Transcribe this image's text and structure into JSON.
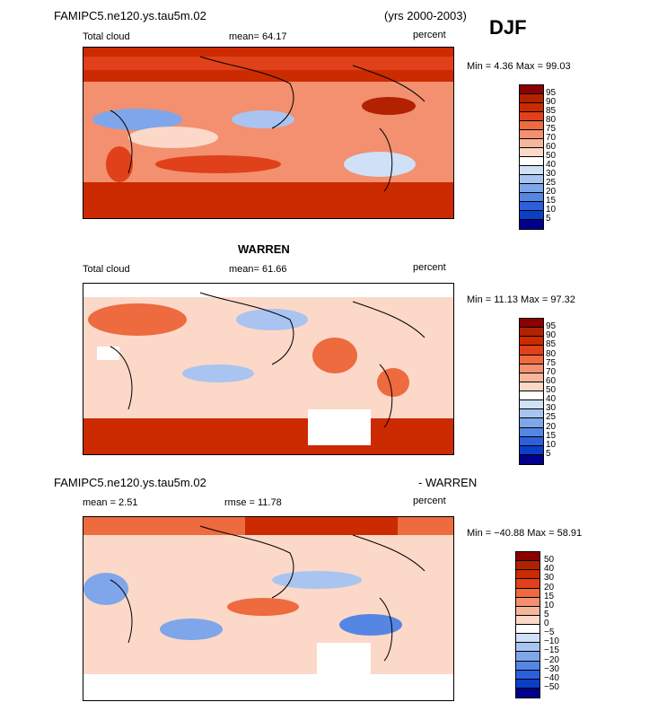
{
  "header": {
    "model": "FAMIPC5.ne120.ys.tau5m.02",
    "years": "(yrs 2000-2003)",
    "season": "DJF"
  },
  "panels": [
    {
      "title_left": "Total cloud",
      "stat": "mean=  64.17",
      "units": "percent",
      "minmax": "Min =   4.36 Max =  99.03",
      "levels": [
        "95",
        "90",
        "85",
        "80",
        "75",
        "70",
        "60",
        "50",
        "40",
        "30",
        "25",
        "20",
        "15",
        "10",
        "5"
      ]
    },
    {
      "center_title": "WARREN",
      "title_left": "Total cloud",
      "stat": "mean=  61.66",
      "units": "percent",
      "minmax": "Min =  11.13 Max =  97.32",
      "levels": [
        "95",
        "90",
        "85",
        "80",
        "75",
        "70",
        "60",
        "50",
        "40",
        "30",
        "25",
        "20",
        "15",
        "10",
        "5"
      ]
    },
    {
      "diff_left": "FAMIPC5.ne120.ys.tau5m.02",
      "diff_right": "- WARREN",
      "mean": "mean =    2.51",
      "rmse": "rmse =   11.78",
      "units": "percent",
      "minmax": "Min = −40.88 Max =  58.91",
      "levels": [
        "50",
        "40",
        "30",
        "20",
        "15",
        "10",
        "5",
        "0",
        "−5",
        "−10",
        "−15",
        "−20",
        "−30",
        "−40",
        "−50"
      ]
    }
  ],
  "colors": {
    "scale": [
      "#8b0000",
      "#b22200",
      "#cc2a00",
      "#e0401a",
      "#ee6a3f",
      "#f29070",
      "#f6b69c",
      "#fbd8c8",
      "#ffffff",
      "#cfe0f7",
      "#a9c4f0",
      "#7fa6ea",
      "#5586e3",
      "#2c5fdb",
      "#0a3fc8",
      "#00008b"
    ]
  }
}
